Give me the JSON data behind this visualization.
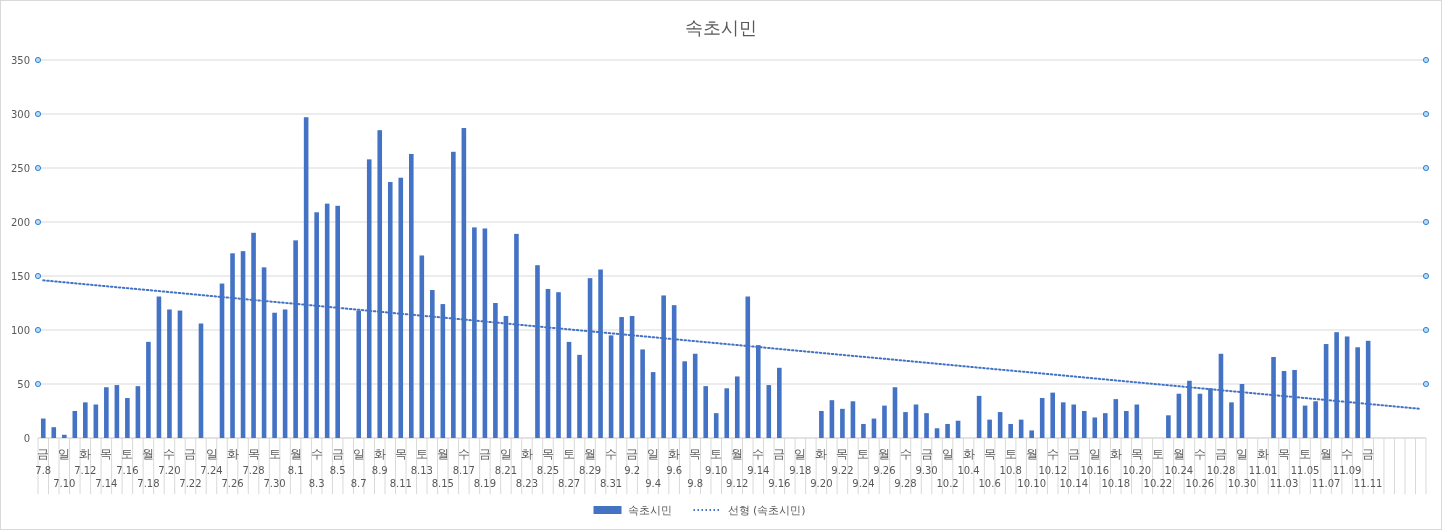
{
  "chart_data": {
    "type": "bar",
    "title": "속초시민",
    "categories": [
      "금\n7.8",
      null,
      "일\n7.10",
      null,
      "화\n7.12",
      null,
      "목\n7.14",
      null,
      "토\n7.16",
      null,
      "월\n7.18",
      null,
      "수\n7.20",
      null,
      "금\n7.22",
      null,
      "일\n7.24",
      null,
      "화\n7.26",
      null,
      "목\n7.28",
      null,
      "토\n7.30",
      null,
      "월\n8.1",
      null,
      "수\n8.3",
      null,
      "금\n8.5",
      null,
      "일\n8.7",
      null,
      "화\n8.9",
      null,
      "목\n8.11",
      null,
      "토\n8.13",
      null,
      "월\n8.15",
      null,
      "수\n8.17",
      null,
      "금\n8.19",
      null,
      "일\n8.21",
      null,
      "화\n8.23",
      null,
      "목\n8.25",
      null,
      "토\n8.27",
      null,
      "월\n8.29",
      null,
      "수\n8.31",
      null,
      "금\n9.2",
      null,
      "일\n9.4",
      null,
      "화\n9.6",
      null,
      "목\n9.8",
      null,
      "토\n9.10",
      null,
      "월\n9.12",
      null,
      "수\n9.14",
      null,
      "금\n9.16",
      null,
      "일\n9.18",
      null,
      "화\n9.20",
      null,
      "목\n9.22",
      null,
      "토\n9.24",
      null,
      "월\n9.26",
      null,
      "수\n9.28",
      null,
      "금\n9.30",
      null,
      "일\n10.2",
      null,
      "화\n10.4",
      null,
      "목\n10.6",
      null,
      "토\n10.8",
      null,
      "월\n10.10",
      null,
      "수\n10.12",
      null,
      "금\n10.14",
      null,
      "일\n10.16",
      null,
      "화\n10.18",
      null,
      "목\n10.20",
      null,
      "토\n10.22",
      null,
      "월\n10.24",
      null,
      "수\n10.26",
      null,
      "금\n10.28",
      null,
      "일\n10.30",
      null,
      "화\n11.01",
      null,
      "목\n11.03",
      null,
      "토\n11.05",
      null,
      "월\n11.07",
      null,
      "수\n11.09",
      null,
      "금\n11.11",
      null,
      null,
      null,
      null,
      null
    ],
    "series": [
      {
        "name": "속초시민",
        "color": "#4472c4",
        "values": [
          18,
          10,
          3,
          25,
          33,
          31,
          47,
          49,
          37,
          48,
          89,
          131,
          119,
          118,
          null,
          106,
          null,
          143,
          171,
          173,
          190,
          158,
          116,
          119,
          183,
          297,
          209,
          217,
          215,
          null,
          118,
          258,
          285,
          237,
          241,
          263,
          169,
          137,
          124,
          265,
          287,
          195,
          194,
          125,
          113,
          189,
          null,
          160,
          138,
          135,
          89,
          77,
          148,
          156,
          95,
          112,
          113,
          82,
          61,
          132,
          123,
          71,
          78,
          48,
          23,
          46,
          57,
          131,
          86,
          49,
          65,
          null,
          null,
          null,
          25,
          35,
          27,
          34,
          13,
          18,
          30,
          47,
          24,
          31,
          23,
          9,
          13,
          16,
          null,
          39,
          17,
          24,
          13,
          17,
          7,
          37,
          42,
          33,
          31,
          25,
          19,
          23,
          36,
          25,
          31,
          null,
          null,
          21,
          41,
          53,
          41,
          46,
          78,
          33,
          50,
          null,
          null,
          75,
          62,
          63,
          30,
          34,
          87,
          98,
          94,
          84,
          90,
          null,
          null,
          null,
          null,
          null
        ]
      },
      {
        "name": "선형 (속초시민)",
        "type": "line",
        "color": "#4472c4",
        "line_style": "dotted",
        "values": [
          146,
          null,
          null,
          null,
          null,
          null,
          null,
          null,
          null,
          null,
          null,
          null,
          null,
          null,
          null,
          null,
          null,
          null,
          null,
          null,
          null,
          null,
          null,
          null,
          null,
          null,
          null,
          null,
          null,
          null,
          null,
          null,
          null,
          null,
          null,
          null,
          null,
          null,
          null,
          null,
          null,
          null,
          null,
          null,
          null,
          null,
          null,
          null,
          null,
          null,
          null,
          null,
          null,
          null,
          null,
          null,
          null,
          null,
          null,
          null,
          null,
          null,
          null,
          null,
          null,
          null,
          null,
          null,
          null,
          null,
          null,
          null,
          null,
          null,
          null,
          null,
          null,
          null,
          null,
          null,
          null,
          null,
          null,
          null,
          null,
          null,
          null,
          null,
          null,
          null,
          null,
          null,
          null,
          null,
          null,
          null,
          null,
          null,
          null,
          null,
          null,
          null,
          null,
          null,
          null,
          null,
          null,
          null,
          null,
          null,
          null,
          null,
          null,
          null,
          null,
          null,
          null,
          null,
          null,
          null,
          null,
          null,
          null,
          null,
          null,
          null,
          null,
          null,
          null,
          null,
          null,
          27
        ]
      }
    ],
    "ylim": [
      0,
      350
    ],
    "yticks": [
      0,
      50,
      100,
      150,
      200,
      250,
      300,
      350
    ],
    "grid": "y",
    "legend": "bottom"
  }
}
